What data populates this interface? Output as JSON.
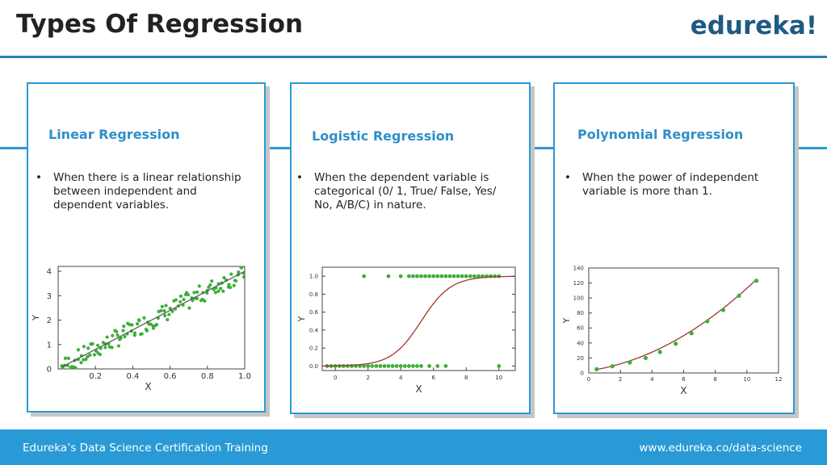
{
  "header": {
    "title": "Types Of Regression",
    "logo": "edureka!"
  },
  "cards": [
    {
      "title": "Linear Regression",
      "text": "When there is a linear relationship between independent and dependent variables."
    },
    {
      "title": "Logistic Regression",
      "text": "When the dependent variable is categorical (0/ 1, True/ False, Yes/ No, A/B/C) in nature."
    },
    {
      "title": "Polynomial Regression",
      "text": "When the power of independent variable is more than 1."
    }
  ],
  "footer": {
    "left": "Edureka’s Data Science Certification Training",
    "right": "www.edureka.co/data-science"
  },
  "colors": {
    "accent": "#2a9ad6",
    "point": "#3fae3a",
    "fit": "#9b3a2a"
  },
  "chart_data": [
    {
      "type": "scatter",
      "title": "",
      "xlabel": "X",
      "ylabel": "Y",
      "xlim": [
        0,
        1.0
      ],
      "ylim": [
        0,
        4.2
      ],
      "xticks": [
        0.2,
        0.4,
        0.6,
        0.8,
        1.0
      ],
      "yticks": [
        0,
        1,
        2,
        3,
        4
      ],
      "series": [
        {
          "kind": "points",
          "description_rule": "y ≈ 4x with noise"
        },
        {
          "kind": "fit_line",
          "x": [
            0.02,
            1.0
          ],
          "y": [
            0.08,
            4.0
          ]
        }
      ]
    },
    {
      "type": "scatter",
      "title": "",
      "xlabel": "X",
      "ylabel": "Y",
      "xlim": [
        -0.8,
        11
      ],
      "ylim": [
        -0.05,
        1.1
      ],
      "xticks": [
        0,
        2,
        4,
        6,
        8,
        10
      ],
      "yticks": [
        0.0,
        0.2,
        0.4,
        0.6,
        0.8,
        1.0
      ],
      "series": [
        {
          "kind": "points",
          "y": 0,
          "x": [
            -0.5,
            -0.25,
            0,
            0.25,
            0.5,
            0.75,
            1.0,
            1.25,
            1.5,
            1.75,
            2.0,
            2.25,
            2.5,
            2.75,
            3.0,
            3.25,
            3.5,
            3.75,
            4.0,
            4.25,
            4.5,
            4.75,
            5.0,
            5.25,
            5.75,
            6.25,
            6.75,
            10.0
          ]
        },
        {
          "kind": "points",
          "y": 1,
          "x": [
            1.75,
            3.25,
            4.0,
            4.5,
            4.75,
            5.0,
            5.25,
            5.5,
            5.75,
            6.0,
            6.25,
            6.5,
            6.75,
            7.0,
            7.25,
            7.5,
            7.75,
            8.0,
            8.25,
            8.5,
            8.75,
            9.0,
            9.25,
            9.5,
            9.75,
            10.0
          ]
        },
        {
          "kind": "sigmoid",
          "center": 5.25,
          "steepness": 1.1,
          "x_range": [
            -0.8,
            11
          ]
        }
      ]
    },
    {
      "type": "scatter",
      "title": "",
      "xlabel": "X",
      "ylabel": "Y",
      "xlim": [
        0,
        12
      ],
      "ylim": [
        0,
        140
      ],
      "xticks": [
        0,
        2,
        4,
        6,
        8,
        10,
        12
      ],
      "yticks": [
        0,
        20,
        40,
        60,
        80,
        100,
        120,
        140
      ],
      "series": [
        {
          "kind": "points",
          "x": [
            0.5,
            1.5,
            2.6,
            3.6,
            4.5,
            5.5,
            6.5,
            7.5,
            8.5,
            9.5,
            10.6
          ],
          "y": [
            5,
            9,
            14,
            20,
            28,
            39,
            53,
            69,
            84,
            103,
            123
          ]
        },
        {
          "kind": "curve",
          "formula": "y = 0.8x^2 + 3x + 3",
          "x_range": [
            0.5,
            10.6
          ]
        }
      ]
    }
  ]
}
